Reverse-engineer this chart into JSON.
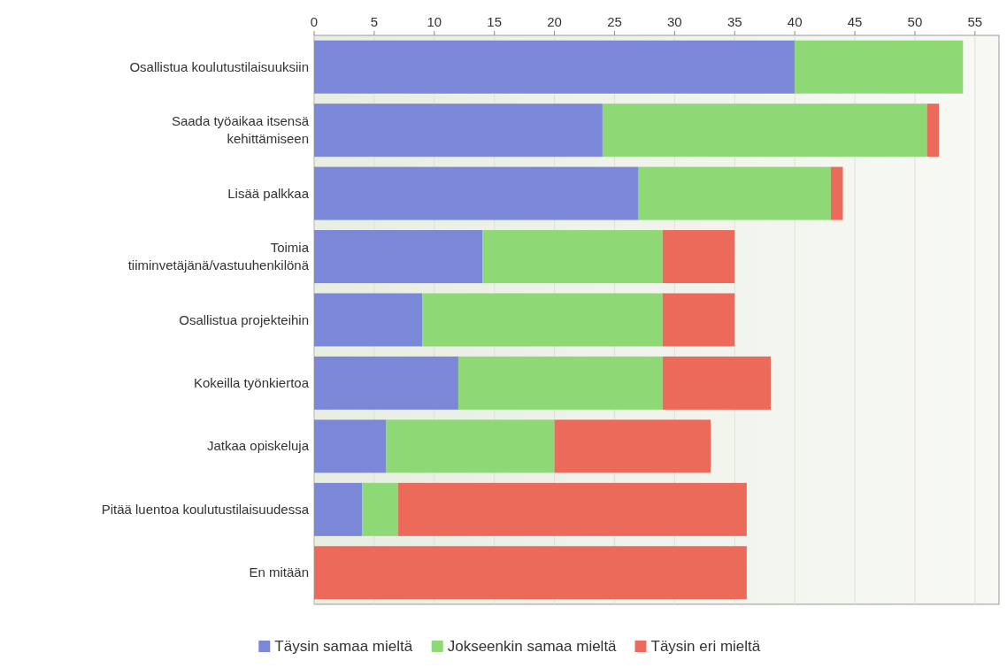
{
  "chart_data": {
    "type": "bar",
    "orientation": "horizontal",
    "stacked": true,
    "categories": [
      "Osallistua koulutustilaisuuksiin",
      "Saada työaikaa itsensä\nkehittämiseen",
      "Lisää palkkaa",
      "Toimia\ntiiminvetäjänä/vastuuhenkilönä",
      "Osallistua projekteihin",
      "Kokeilla työnkiertoa",
      "Jatkaa opiskeluja",
      "Pitää luentoa koulutustilaisuudessa",
      "En mitään"
    ],
    "series": [
      {
        "name": "Täysin samaa mieltä",
        "color": "#7b88d8",
        "values": [
          40,
          24,
          27,
          14,
          9,
          12,
          6,
          4,
          0
        ]
      },
      {
        "name": "Jokseenkin samaa mieltä",
        "color": "#8fd876",
        "values": [
          14,
          27,
          16,
          15,
          20,
          17,
          14,
          3,
          0
        ]
      },
      {
        "name": "Täysin eri mieltä",
        "color": "#ec6a5a",
        "values": [
          0,
          1,
          1,
          6,
          6,
          9,
          13,
          29,
          36
        ]
      }
    ],
    "xlim": [
      0,
      57
    ],
    "xticks": [
      0,
      5,
      10,
      15,
      20,
      25,
      30,
      35,
      40,
      45,
      50,
      55
    ],
    "grid": "x",
    "legend": "bottom"
  }
}
